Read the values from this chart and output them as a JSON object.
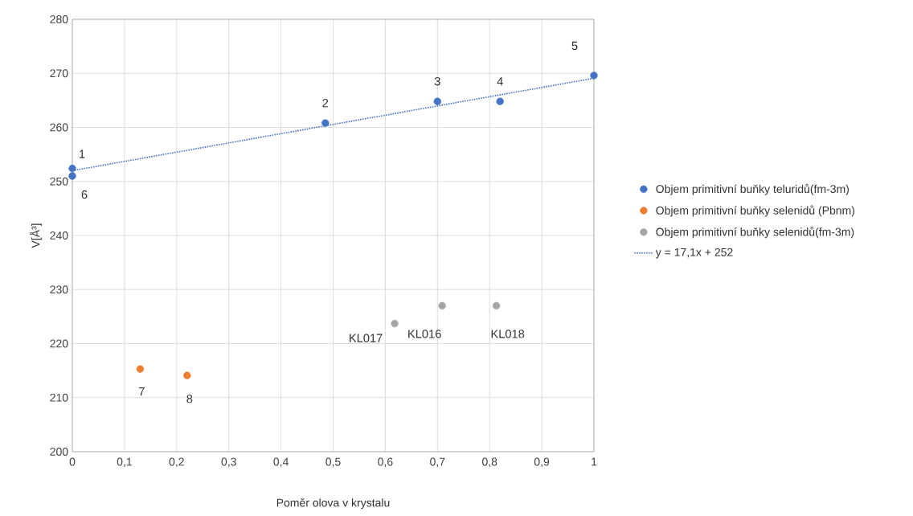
{
  "chart_data": {
    "type": "scatter",
    "xlabel": "Poměr olova v krystalu",
    "ylabel": "V[Å³]",
    "series": [
      {
        "name": "Objem primitivní buňky teluridů(fm-3m)",
        "color": "#4472c4",
        "x": [
          0,
          0.485,
          0.7,
          0.82,
          1,
          0
        ],
        "values": [
          252.4,
          260.8,
          264.8,
          264.8,
          269.6,
          251.0
        ]
      },
      {
        "name": "Objem primitivní buňky selenidů (Pbnm)",
        "color": "#ed7d31",
        "x": [
          0.13,
          0.22
        ],
        "values": [
          215.3,
          214.1
        ]
      },
      {
        "name": "Objem primitivní buňky selenidů(fm-3m)",
        "color": "#a5a5a5",
        "x": [
          0.618,
          0.709,
          0.813
        ],
        "values": [
          223.7,
          227.0,
          227.0
        ]
      },
      {
        "name": "y = 17,1x + 252",
        "type": "line",
        "color": "#4472c4",
        "line_style": "dotted",
        "marker": "none",
        "x": [
          0,
          1
        ],
        "values": [
          252,
          269.1
        ]
      }
    ],
    "annotations": [
      {
        "text": "1",
        "x": 0,
        "y": 252.4
      },
      {
        "text": "2",
        "x": 0.485,
        "y": 260.8
      },
      {
        "text": "3",
        "x": 0.7,
        "y": 264.8
      },
      {
        "text": "4",
        "x": 0.82,
        "y": 264.8
      },
      {
        "text": "5",
        "x": 1,
        "y": 269.6
      },
      {
        "text": "6",
        "x": 0,
        "y": 251.0
      },
      {
        "text": "7",
        "x": 0.13,
        "y": 215.3
      },
      {
        "text": "8",
        "x": 0.22,
        "y": 214.1
      },
      {
        "text": "KL017",
        "x": 0.618,
        "y": 223.7
      },
      {
        "text": "KL016",
        "x": 0.709,
        "y": 227.0
      },
      {
        "text": "KL018",
        "x": 0.813,
        "y": 227.0
      }
    ],
    "xlim": [
      0,
      1
    ],
    "ylim": [
      200,
      280
    ],
    "xticks": [
      0,
      {
        "value": 0.1,
        "label": "0,1"
      },
      {
        "value": 0.2,
        "label": "0,2"
      },
      {
        "value": 0.3,
        "label": "0,3"
      },
      {
        "value": 0.4,
        "label": "0,4"
      },
      {
        "value": 0.5,
        "label": "0,5"
      },
      {
        "value": 0.6,
        "label": "0,6"
      },
      {
        "value": 0.7,
        "label": "0,7"
      },
      {
        "value": 0.8,
        "label": "0,8"
      },
      {
        "value": 0.9,
        "label": "0,9"
      },
      1
    ],
    "yticks": [
      200,
      210,
      220,
      230,
      240,
      250,
      260,
      270,
      280
    ],
    "grid": true,
    "legend": "right",
    "marker": "circle"
  }
}
